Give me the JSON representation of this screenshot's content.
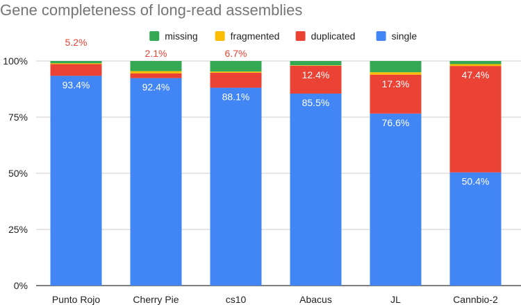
{
  "chart_data": {
    "type": "bar",
    "stacked": true,
    "title": "Gene completeness of long-read assemblies",
    "xlabel": "",
    "ylabel": "",
    "ylim": [
      0,
      100
    ],
    "yticks": [
      "0%",
      "25%",
      "50%",
      "75%",
      "100%"
    ],
    "ytick_values": [
      0,
      25,
      50,
      75,
      100
    ],
    "grid": true,
    "legend_position": "top",
    "categories": [
      "Punto Rojo",
      "Cherry Pie",
      "cs10",
      "Abacus",
      "JL",
      "Cannbio-2"
    ],
    "legend_order": [
      "missing",
      "fragmented",
      "duplicated",
      "single"
    ],
    "series": [
      {
        "name": "single",
        "color": "#4285f4",
        "values": [
          93.4,
          92.4,
          88.1,
          85.5,
          76.6,
          50.4
        ]
      },
      {
        "name": "duplicated",
        "color": "#ea4335",
        "values": [
          5.2,
          2.1,
          6.7,
          12.4,
          17.3,
          47.4
        ]
      },
      {
        "name": "fragmented",
        "color": "#fbbc04",
        "values": [
          0.4,
          1.0,
          0.5,
          0.2,
          1.1,
          0.8
        ]
      },
      {
        "name": "missing",
        "color": "#34a853",
        "values": [
          1.0,
          4.5,
          4.7,
          1.9,
          5.0,
          1.4
        ]
      }
    ],
    "data_labels": {
      "single": [
        "93.4%",
        "92.4%",
        "88.1%",
        "85.5%",
        "76.6%",
        "50.4%"
      ],
      "duplicated": [
        "5.2%",
        "2.1%",
        "6.7%",
        "12.4%",
        "17.3%",
        "47.4%"
      ]
    }
  }
}
